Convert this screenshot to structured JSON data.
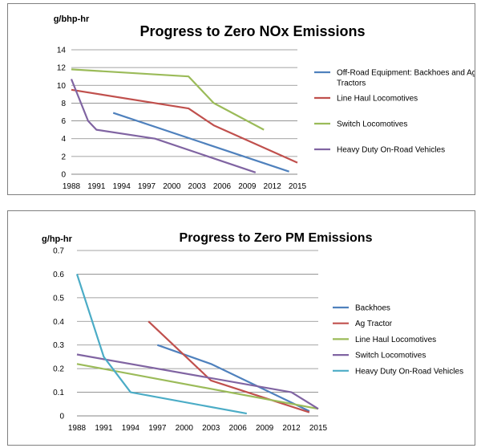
{
  "chart_data": [
    {
      "type": "line",
      "title": "Progress to Zero NOx Emissions",
      "ylabel": "g/bhp-hr",
      "xlim": [
        1988,
        2015
      ],
      "ylim": [
        0,
        14
      ],
      "yticks": [
        0,
        2,
        4,
        6,
        8,
        10,
        12,
        14
      ],
      "xticks": [
        1988,
        1991,
        1994,
        1997,
        2000,
        2003,
        2006,
        2009,
        2012,
        2015
      ],
      "grid": true,
      "legend_position": "right",
      "series": [
        {
          "name": "Off-Road Equipment: Backhoes and Ag Tractors",
          "color": "#4f81bd",
          "points": [
            [
              1993,
              6.9
            ],
            [
              2014,
              0.3
            ]
          ]
        },
        {
          "name": "Line Haul Locomotives",
          "color": "#c0504d",
          "points": [
            [
              1988,
              9.5
            ],
            [
              2002,
              7.4
            ],
            [
              2005,
              5.5
            ],
            [
              2015,
              1.3
            ]
          ]
        },
        {
          "name": "Switch Locomotives",
          "color": "#9bbb59",
          "points": [
            [
              1988,
              11.8
            ],
            [
              2002,
              11.0
            ],
            [
              2005,
              8.0
            ],
            [
              2011,
              5.0
            ]
          ]
        },
        {
          "name": "Heavy Duty On-Road Vehicles",
          "color": "#8064a2",
          "points": [
            [
              1988,
              10.7
            ],
            [
              1990,
              6.0
            ],
            [
              1991,
              5.0
            ],
            [
              1998,
              4.0
            ],
            [
              2010,
              0.2
            ]
          ]
        }
      ]
    },
    {
      "type": "line",
      "title": "Progress to Zero PM Emissions",
      "ylabel": "g/hp-hr",
      "xlim": [
        1988,
        2015
      ],
      "ylim": [
        0,
        0.7
      ],
      "yticks": [
        0,
        0.1,
        0.2,
        0.3,
        0.4,
        0.5,
        0.6,
        0.7
      ],
      "xticks": [
        1988,
        1991,
        1994,
        1997,
        2000,
        2003,
        2006,
        2009,
        2012,
        2015
      ],
      "grid": true,
      "legend_position": "right",
      "series": [
        {
          "name": "Backhoes",
          "color": "#4f81bd",
          "points": [
            [
              1997,
              0.3
            ],
            [
              2003,
              0.22
            ],
            [
              2014,
              0.02
            ]
          ]
        },
        {
          "name": "Ag Tractor",
          "color": "#c0504d",
          "points": [
            [
              1996,
              0.4
            ],
            [
              2003,
              0.15
            ],
            [
              2014,
              0.015
            ]
          ]
        },
        {
          "name": "Line Haul Locomotives",
          "color": "#9bbb59",
          "points": [
            [
              1988,
              0.22
            ],
            [
              2015,
              0.03
            ]
          ]
        },
        {
          "name": "Switch Locomotives",
          "color": "#8064a2",
          "points": [
            [
              1988,
              0.26
            ],
            [
              2012,
              0.1
            ],
            [
              2015,
              0.03
            ]
          ]
        },
        {
          "name": "Heavy Duty On-Road Vehicles",
          "color": "#4bacc6",
          "points": [
            [
              1988,
              0.6
            ],
            [
              1991,
              0.25
            ],
            [
              1994,
              0.1
            ],
            [
              2007,
              0.01
            ]
          ]
        }
      ]
    }
  ]
}
